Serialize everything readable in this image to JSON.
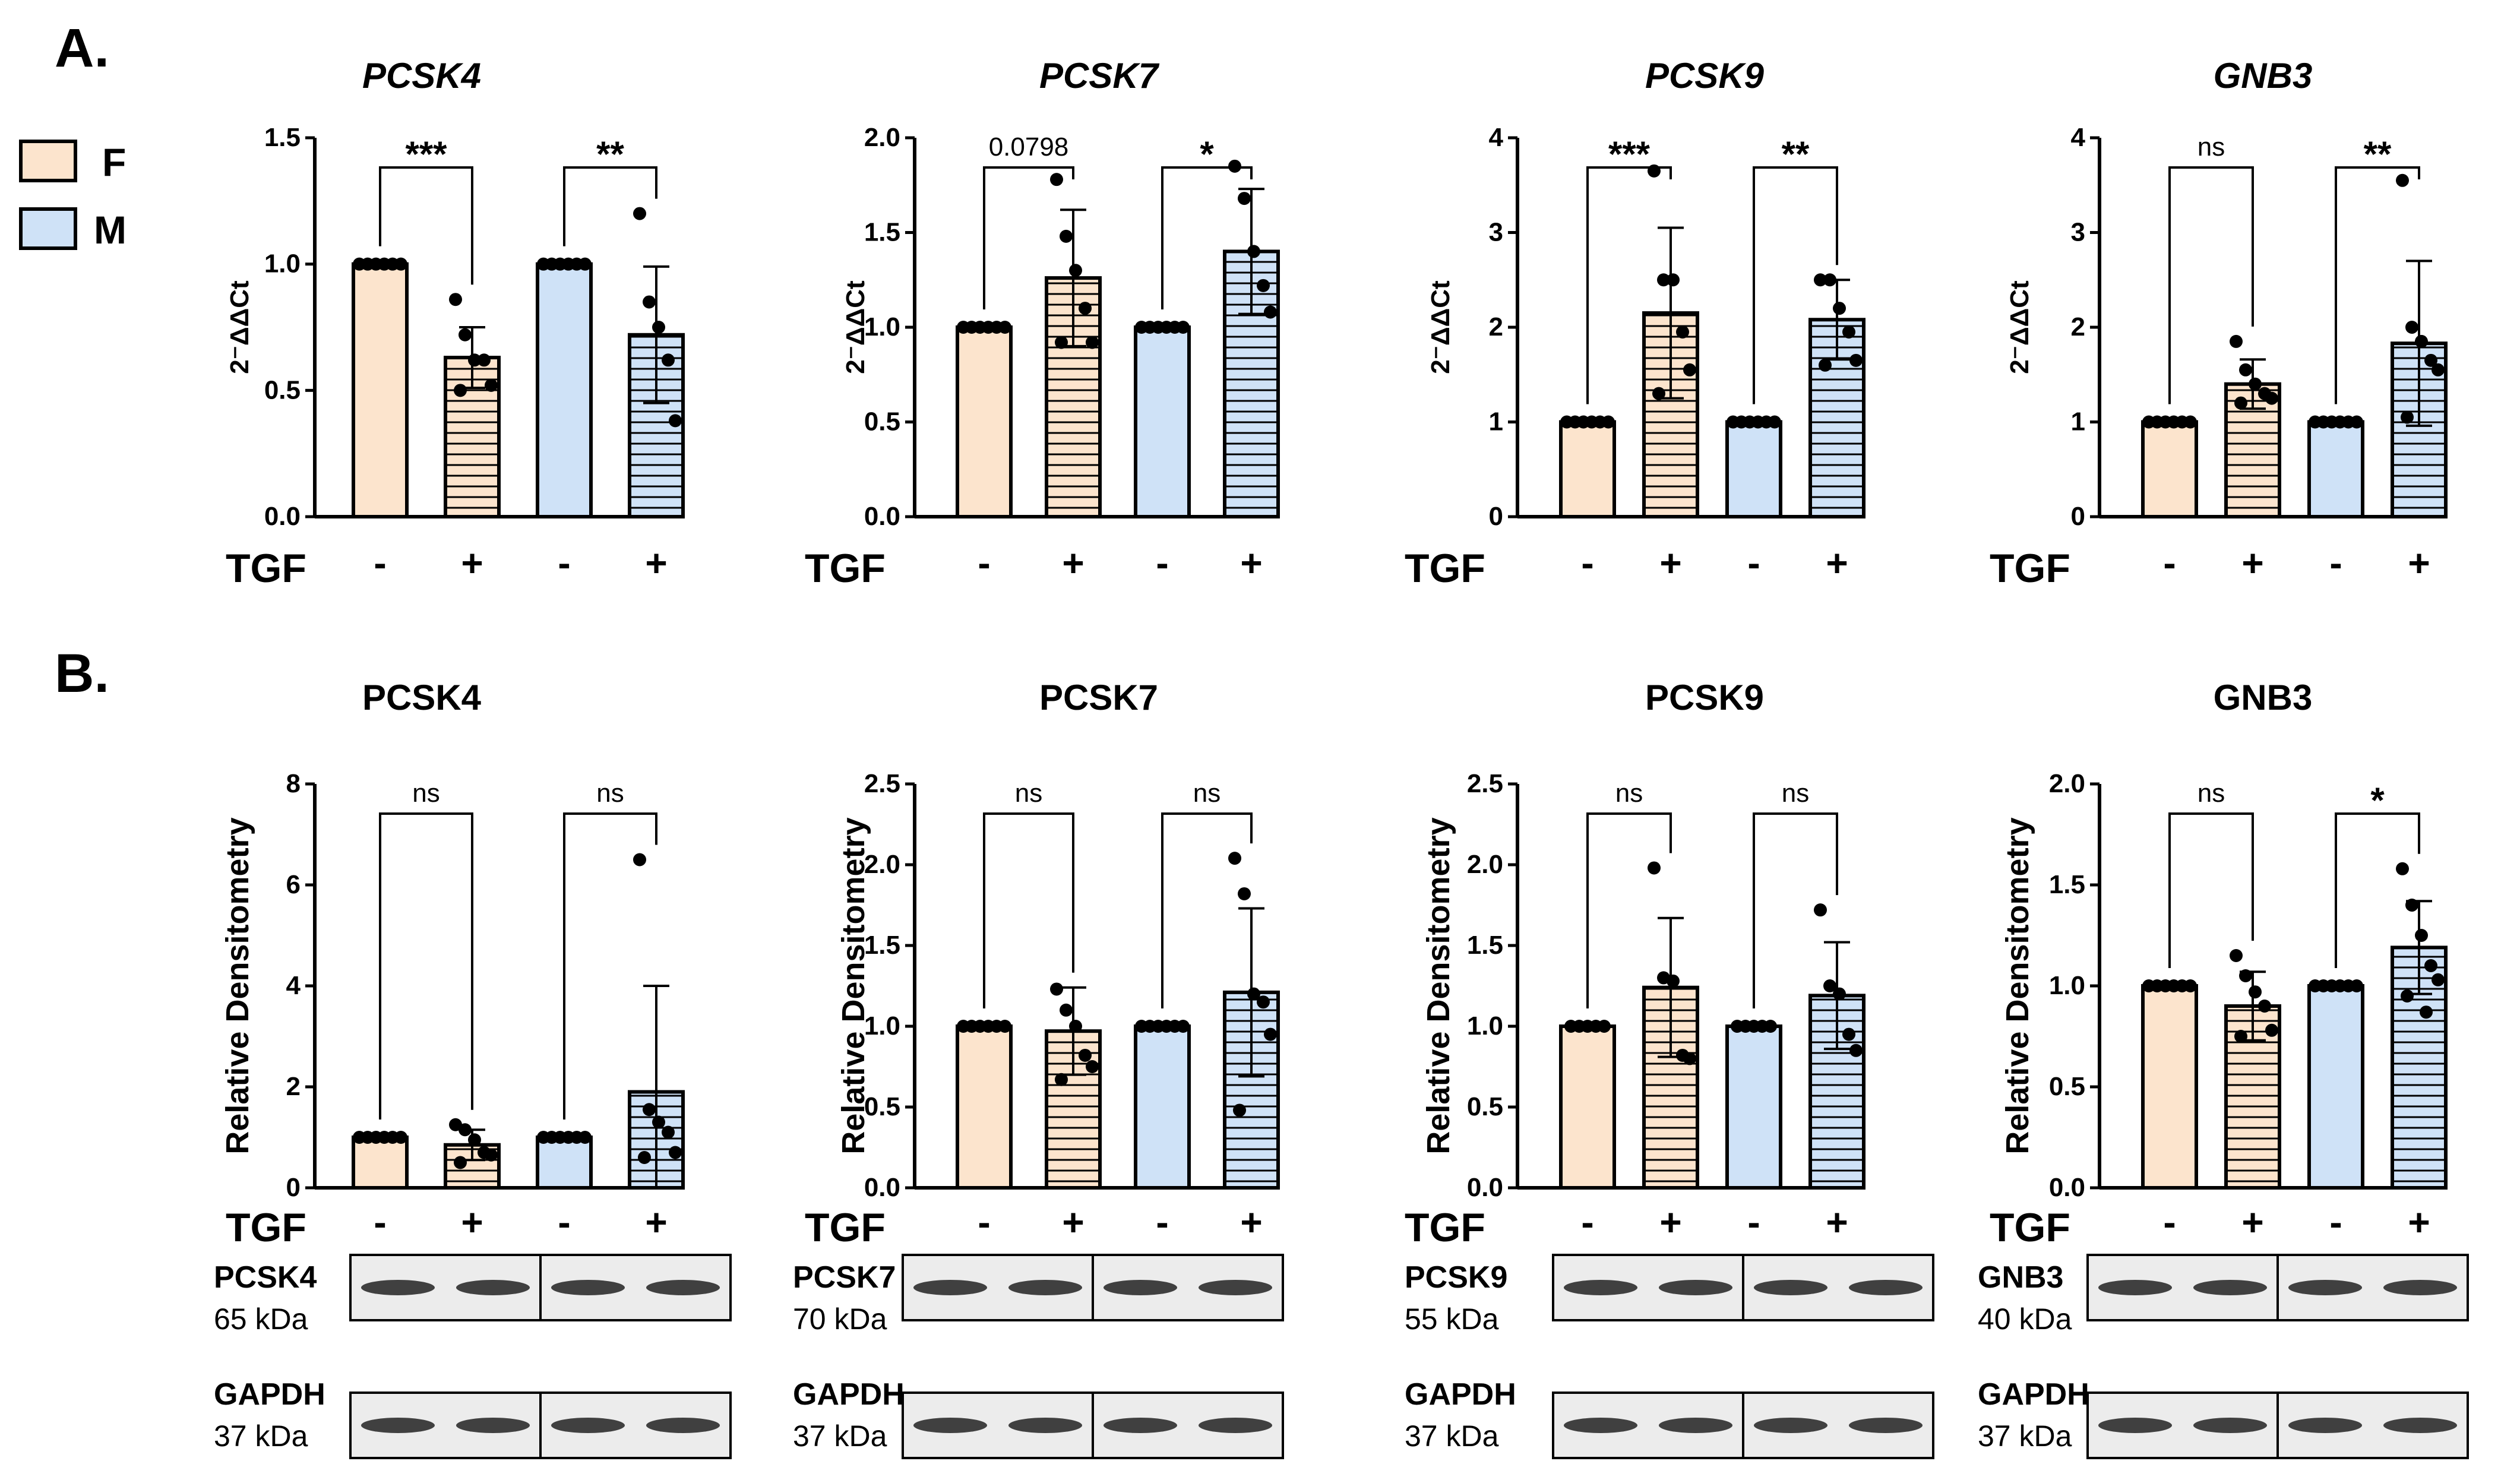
{
  "figure": {
    "panel_labels": [
      "A.",
      "B."
    ],
    "legend": [
      {
        "label": "F",
        "color": "#FCE4CD"
      },
      {
        "label": "M",
        "color": "#CFE2F7"
      }
    ],
    "x_title": "TGF",
    "x_ticks": [
      "-",
      "+",
      "-",
      "+"
    ],
    "groups": [
      "F",
      "F",
      "M",
      "M"
    ],
    "colors": {
      "F": "#FCE4CD",
      "M": "#CFE2F7",
      "stroke": "#000000"
    },
    "treated_pattern": "horizontal-stripes"
  },
  "chart_data": [
    {
      "type": "bar",
      "panel": "A.",
      "title": "PCSK4",
      "title_italic": true,
      "ylabel": "2⁻ΔΔCt",
      "ylim": [
        0,
        1.5
      ],
      "yticks": [
        "0.0",
        "0.5",
        "1.0",
        "1.5"
      ],
      "categories": [
        "-",
        "+",
        "-",
        "+"
      ],
      "values": [
        1.0,
        0.63,
        1.0,
        0.72
      ],
      "errors": [
        0,
        0.12,
        0,
        0.27
      ],
      "points": [
        [
          1,
          1,
          1,
          1,
          1,
          1
        ],
        [
          0.86,
          0.72,
          0.62,
          0.62,
          0.52,
          0.5
        ],
        [
          1,
          1,
          1,
          1,
          1,
          1
        ],
        [
          1.2,
          0.85,
          0.75,
          0.62,
          0.38
        ]
      ],
      "annotations": [
        {
          "from": 0,
          "to": 1,
          "label": "***"
        },
        {
          "from": 2,
          "to": 3,
          "label": "**"
        }
      ]
    },
    {
      "type": "bar",
      "panel": "A.",
      "title": "PCSK7",
      "title_italic": true,
      "ylabel": "2⁻ΔΔCt",
      "ylim": [
        0,
        2.0
      ],
      "yticks": [
        "0.0",
        "0.5",
        "1.0",
        "1.5",
        "2.0"
      ],
      "categories": [
        "-",
        "+",
        "-",
        "+"
      ],
      "values": [
        1.0,
        1.26,
        1.0,
        1.4
      ],
      "errors": [
        0,
        0.36,
        0,
        0.33
      ],
      "points": [
        [
          1,
          1,
          1,
          1,
          1,
          1
        ],
        [
          1.78,
          1.48,
          1.3,
          1.1,
          0.92,
          0.92
        ],
        [
          1,
          1,
          1,
          1,
          1,
          1
        ],
        [
          1.85,
          1.68,
          1.4,
          1.22,
          1.08
        ]
      ],
      "annotations": [
        {
          "from": 0,
          "to": 1,
          "label": "0.0798"
        },
        {
          "from": 2,
          "to": 3,
          "label": "*"
        }
      ]
    },
    {
      "type": "bar",
      "panel": "A.",
      "title": "PCSK9",
      "title_italic": true,
      "ylabel": "2⁻ΔΔCt",
      "ylim": [
        0,
        4
      ],
      "yticks": [
        "0",
        "1",
        "2",
        "3",
        "4"
      ],
      "categories": [
        "-",
        "+",
        "-",
        "+"
      ],
      "values": [
        1.0,
        2.15,
        1.0,
        2.08
      ],
      "errors": [
        0,
        0.9,
        0,
        0.42
      ],
      "points": [
        [
          1,
          1,
          1,
          1,
          1,
          1
        ],
        [
          3.65,
          2.5,
          2.5,
          1.95,
          1.55,
          1.3
        ],
        [
          1,
          1,
          1,
          1,
          1,
          1
        ],
        [
          2.5,
          2.5,
          2.2,
          1.95,
          1.65,
          1.6
        ]
      ],
      "annotations": [
        {
          "from": 0,
          "to": 1,
          "label": "***"
        },
        {
          "from": 2,
          "to": 3,
          "label": "**"
        }
      ]
    },
    {
      "type": "bar",
      "panel": "A.",
      "title": "GNB3",
      "title_italic": true,
      "ylabel": "2⁻ΔΔCt",
      "ylim": [
        0,
        4
      ],
      "yticks": [
        "0",
        "1",
        "2",
        "3",
        "4"
      ],
      "categories": [
        "-",
        "+",
        "-",
        "+"
      ],
      "values": [
        1.0,
        1.4,
        1.0,
        1.83
      ],
      "errors": [
        0,
        0.26,
        0,
        0.87
      ],
      "points": [
        [
          1,
          1,
          1,
          1,
          1,
          1
        ],
        [
          1.85,
          1.55,
          1.4,
          1.3,
          1.25,
          1.2
        ],
        [
          1,
          1,
          1,
          1,
          1,
          1
        ],
        [
          3.55,
          2.0,
          1.85,
          1.65,
          1.55,
          1.05
        ]
      ],
      "annotations": [
        {
          "from": 0,
          "to": 1,
          "label": "ns"
        },
        {
          "from": 2,
          "to": 3,
          "label": "**"
        }
      ]
    },
    {
      "type": "bar",
      "panel": "B.",
      "title": "PCSK4",
      "title_italic": false,
      "ylabel": "Relative Densitometry",
      "ylim": [
        0,
        8
      ],
      "yticks": [
        "0",
        "2",
        "4",
        "6",
        "8"
      ],
      "categories": [
        "-",
        "+",
        "-",
        "+"
      ],
      "values": [
        1.0,
        0.85,
        1.0,
        1.9
      ],
      "errors": [
        0,
        0.3,
        0,
        2.1
      ],
      "points": [
        [
          1,
          1,
          1,
          1,
          1,
          1
        ],
        [
          1.25,
          1.15,
          0.95,
          0.7,
          0.65,
          0.5
        ],
        [
          1,
          1,
          1,
          1,
          1,
          1
        ],
        [
          6.5,
          1.55,
          1.3,
          1.1,
          0.7,
          0.6
        ]
      ],
      "annotations": [
        {
          "from": 0,
          "to": 1,
          "label": "ns"
        },
        {
          "from": 2,
          "to": 3,
          "label": "ns"
        }
      ],
      "blot": {
        "target": "PCSK4",
        "target_kda": "65 kDa",
        "loading": "GAPDH",
        "loading_kda": "37 kDa"
      }
    },
    {
      "type": "bar",
      "panel": "B.",
      "title": "PCSK7",
      "title_italic": false,
      "ylabel": "Relative Densitometry",
      "ylim": [
        0,
        2.5
      ],
      "yticks": [
        "0.0",
        "0.5",
        "1.0",
        "1.5",
        "2.0",
        "2.5"
      ],
      "categories": [
        "-",
        "+",
        "-",
        "+"
      ],
      "values": [
        1.0,
        0.97,
        1.0,
        1.21
      ],
      "errors": [
        0,
        0.27,
        0,
        0.52
      ],
      "points": [
        [
          1,
          1,
          1,
          1,
          1,
          1
        ],
        [
          1.23,
          1.1,
          1.0,
          0.82,
          0.75,
          0.67
        ],
        [
          1,
          1,
          1,
          1,
          1,
          1
        ],
        [
          2.04,
          1.82,
          1.2,
          1.15,
          0.95,
          0.48
        ]
      ],
      "annotations": [
        {
          "from": 0,
          "to": 1,
          "label": "ns"
        },
        {
          "from": 2,
          "to": 3,
          "label": "ns"
        }
      ],
      "blot": {
        "target": "PCSK7",
        "target_kda": "70 kDa",
        "loading": "GAPDH",
        "loading_kda": "37 kDa"
      }
    },
    {
      "type": "bar",
      "panel": "B.",
      "title": "PCSK9",
      "title_italic": false,
      "ylabel": "Relative Densitometry",
      "ylim": [
        0,
        2.5
      ],
      "yticks": [
        "0.0",
        "0.5",
        "1.0",
        "1.5",
        "2.0",
        "2.5"
      ],
      "categories": [
        "-",
        "+",
        "-",
        "+"
      ],
      "values": [
        1.0,
        1.24,
        1.0,
        1.19
      ],
      "errors": [
        0,
        0.43,
        0,
        0.33
      ],
      "points": [
        [
          1,
          1,
          1,
          1,
          1
        ],
        [
          1.98,
          1.3,
          1.28,
          0.82,
          0.8
        ],
        [
          1,
          1,
          1,
          1,
          1
        ],
        [
          1.72,
          1.25,
          1.2,
          0.95,
          0.85
        ]
      ],
      "annotations": [
        {
          "from": 0,
          "to": 1,
          "label": "ns"
        },
        {
          "from": 2,
          "to": 3,
          "label": "ns"
        }
      ],
      "blot": {
        "target": "PCSK9",
        "target_kda": "55 kDa",
        "loading": "GAPDH",
        "loading_kda": "37 kDa"
      }
    },
    {
      "type": "bar",
      "panel": "B.",
      "title": "GNB3",
      "title_italic": false,
      "ylabel": "Relative Densitometry",
      "ylim": [
        0,
        2.0
      ],
      "yticks": [
        "0.0",
        "0.5",
        "1.0",
        "1.5",
        "2.0"
      ],
      "categories": [
        "-",
        "+",
        "-",
        "+"
      ],
      "values": [
        1.0,
        0.9,
        1.0,
        1.19
      ],
      "errors": [
        0,
        0.17,
        0,
        0.23
      ],
      "points": [
        [
          1,
          1,
          1,
          1,
          1,
          1
        ],
        [
          1.15,
          1.05,
          0.97,
          0.9,
          0.78,
          0.75
        ],
        [
          1,
          1,
          1,
          1,
          1,
          1
        ],
        [
          1.58,
          1.4,
          1.25,
          1.1,
          1.03,
          0.95,
          0.87
        ]
      ],
      "annotations": [
        {
          "from": 0,
          "to": 1,
          "label": "ns"
        },
        {
          "from": 2,
          "to": 3,
          "label": "*"
        }
      ],
      "blot": {
        "target": "GNB3",
        "target_kda": "40 kDa",
        "loading": "GAPDH",
        "loading_kda": "37 kDa"
      }
    }
  ]
}
